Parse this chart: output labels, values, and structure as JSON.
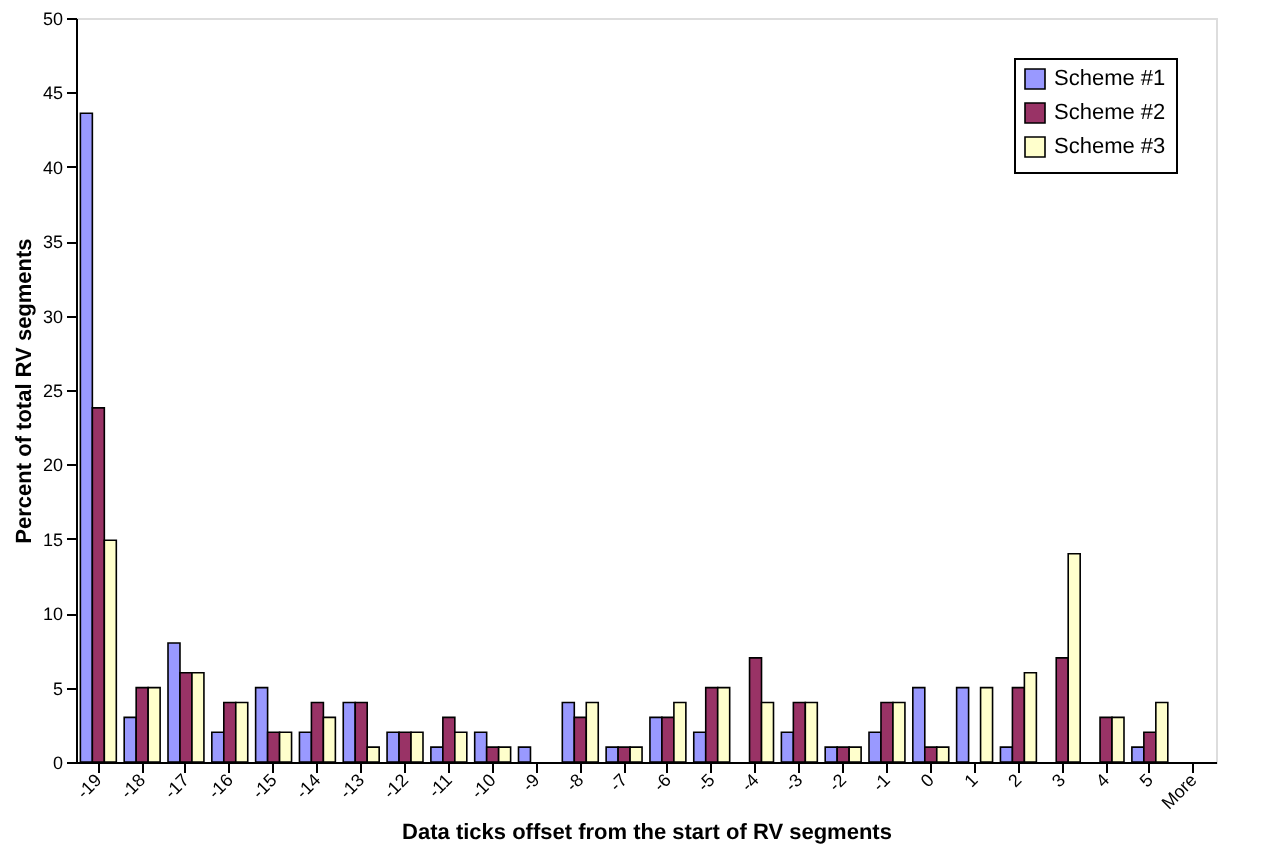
{
  "chart_data": {
    "type": "bar",
    "xlabel": "Data ticks  offset from the start of RV segments",
    "ylabel": "Percent of total RV segments",
    "categories": [
      "-19",
      "-18",
      "-17",
      "-16",
      "-15",
      "-14",
      "-13",
      "-12",
      "-11",
      "-10",
      "-9",
      "-8",
      "-7",
      "-6",
      "-5",
      "-4",
      "-3",
      "-2",
      "-1",
      "0",
      "1",
      "2",
      "3",
      "4",
      "5",
      "More"
    ],
    "series": [
      {
        "name": "Scheme #1",
        "color": "#9999ff",
        "values": [
          43.6,
          3,
          8,
          2,
          5,
          2,
          4,
          2,
          1,
          2,
          1,
          4,
          1,
          3,
          2,
          0,
          2,
          1,
          2,
          5,
          5,
          1,
          0,
          0,
          1,
          0
        ]
      },
      {
        "name": "Scheme #2",
        "color": "#993366",
        "values": [
          23.8,
          5,
          6,
          4,
          2,
          4,
          4,
          2,
          3,
          1,
          0,
          3,
          1,
          3,
          5,
          7,
          4,
          1,
          4,
          1,
          0,
          5,
          7,
          3,
          2,
          0
        ]
      },
      {
        "name": "Scheme #3",
        "color": "#ffffcc",
        "values": [
          14.9,
          5,
          6,
          4,
          2,
          3,
          1,
          2,
          2,
          1,
          0,
          4,
          1,
          4,
          5,
          4,
          4,
          1,
          4,
          1,
          5,
          6,
          14,
          3,
          4,
          0
        ]
      }
    ],
    "ylim": [
      0,
      50
    ],
    "yticks": [
      0,
      5,
      10,
      15,
      20,
      25,
      30,
      35,
      40,
      45,
      50
    ],
    "grid": false,
    "legend": "top right"
  }
}
